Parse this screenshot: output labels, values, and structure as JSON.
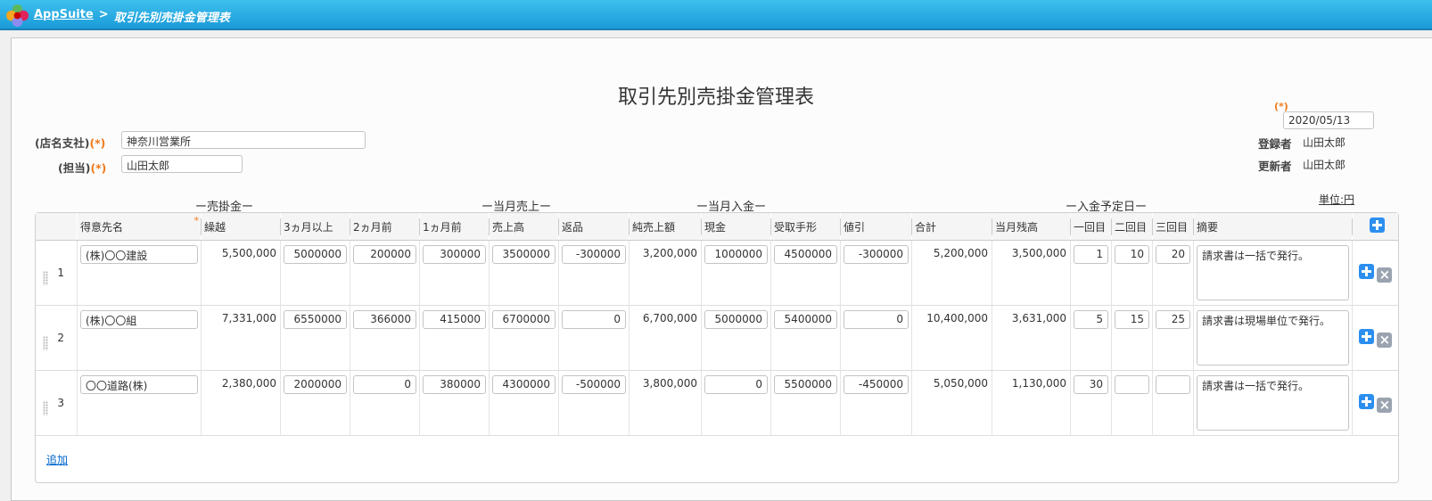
{
  "header": {
    "app": "AppSuite",
    "separator": ">",
    "page": "取引先別売掛金管理表"
  },
  "form": {
    "title": "取引先別売掛金管理表",
    "store_label": "(店名支社)",
    "store_value": "神奈川営業所",
    "staff_label": "(担当)",
    "staff_value": "山田太郎",
    "required_mark": "(*)",
    "date": "2020/05/13",
    "registrant_label": "登録者",
    "registrant": "山田太郎",
    "updater_label": "更新者",
    "updater": "山田太郎",
    "unit": "単位:円"
  },
  "groups": {
    "receivable": "ー売掛金ー",
    "sales": "ー当月売上ー",
    "payment": "ー当月入金ー",
    "schedule": "ー入金予定日ー"
  },
  "columns": [
    "得意先名",
    "繰越",
    "3ヵ月以上",
    "2ヵ月前",
    "1ヵ月前",
    "売上高",
    "返品",
    "純売上額",
    "現金",
    "受取手形",
    "値引",
    "合計",
    "当月残高",
    "一回目",
    "二回目",
    "三回目",
    "摘要"
  ],
  "rows": [
    {
      "no": "1",
      "name": "(株)〇〇建設",
      "carry": "5,500,000",
      "m3": "5000000",
      "m2": "200000",
      "m1": "300000",
      "sales": "3500000",
      "ret": "-300000",
      "net": "3,200,000",
      "cash": "1000000",
      "bill": "4500000",
      "disc": "-300000",
      "total": "5,200,000",
      "bal": "3,500,000",
      "d1": "1",
      "d2": "10",
      "d3": "20",
      "memo": "請求書は一括で発行。"
    },
    {
      "no": "2",
      "name": "(株)〇〇組",
      "carry": "7,331,000",
      "m3": "6550000",
      "m2": "366000",
      "m1": "415000",
      "sales": "6700000",
      "ret": "0",
      "net": "6,700,000",
      "cash": "5000000",
      "bill": "5400000",
      "disc": "0",
      "total": "10,400,000",
      "bal": "3,631,000",
      "d1": "5",
      "d2": "15",
      "d3": "25",
      "memo": "請求書は現場単位で発行。"
    },
    {
      "no": "3",
      "name": "〇〇道路(株)",
      "carry": "2,380,000",
      "m3": "2000000",
      "m2": "0",
      "m1": "380000",
      "sales": "4300000",
      "ret": "-500000",
      "net": "3,800,000",
      "cash": "0",
      "bill": "5500000",
      "disc": "-450000",
      "total": "5,050,000",
      "bal": "1,130,000",
      "d1": "30",
      "d2": "",
      "d3": "",
      "memo": "請求書は一括で発行。"
    }
  ],
  "add_link": "追加",
  "colors": {
    "accent": "#2c8ff0",
    "required": "#f07a1a",
    "topbar": "#1a9bd8"
  }
}
